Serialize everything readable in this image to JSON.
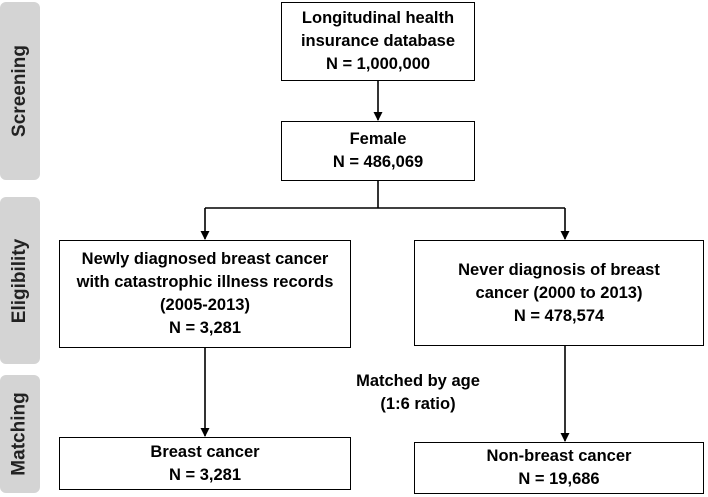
{
  "phases": {
    "screening": "Screening",
    "eligibility": "Eligibility",
    "matching": "Matching"
  },
  "boxes": {
    "database": {
      "line1": "Longitudinal health",
      "line2": "insurance database",
      "line3": "N = 1,000,000"
    },
    "female": {
      "line1": "Female",
      "line2": "N = 486,069"
    },
    "newly_diagnosed": {
      "line1": "Newly diagnosed breast cancer",
      "line2": "with catastrophic illness records",
      "line3": "(2005-2013)",
      "line4": "N = 3,281"
    },
    "never_diagnosed": {
      "line1": "Never diagnosis of breast",
      "line2": "cancer (2000 to 2013)",
      "line3": "N = 478,574"
    },
    "breast_cancer": {
      "line1": "Breast cancer",
      "line2": "N = 3,281"
    },
    "non_breast_cancer": {
      "line1": "Non-breast cancer",
      "line2": "N = 19,686"
    }
  },
  "matching_note": {
    "line1": "Matched by age",
    "line2": "(1:6 ratio)"
  },
  "colors": {
    "phase_tab": "#d4d4d4",
    "border": "#000000",
    "text": "#000000"
  }
}
